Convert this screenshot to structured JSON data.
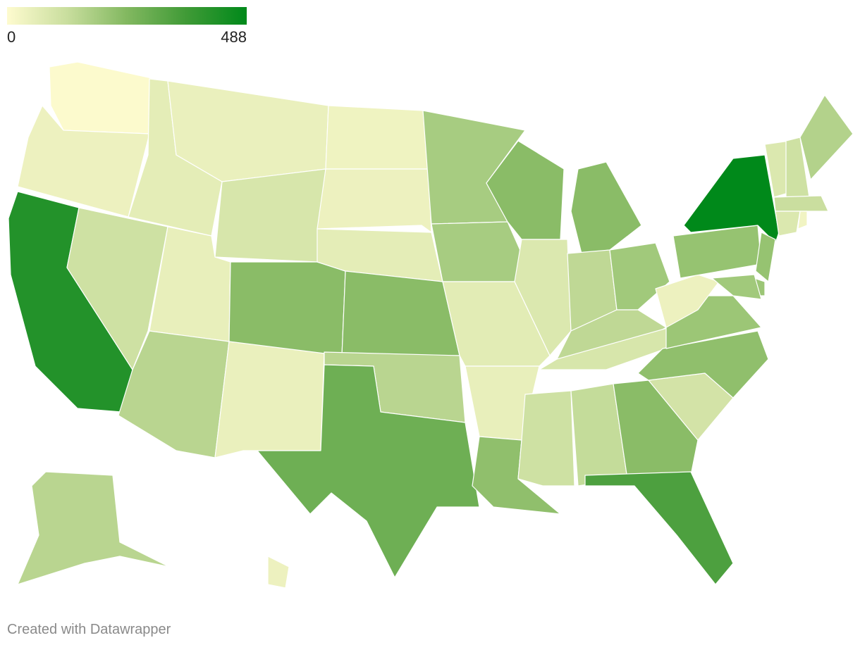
{
  "chart_data": {
    "type": "choropleth",
    "legend_ticks": [
      0,
      488
    ],
    "colors": [
      "#fefbcf",
      "#c9de9e",
      "#82b860",
      "#3f9a36",
      "#00891a"
    ],
    "values": [
      5,
      40,
      420,
      110,
      60,
      45,
      90,
      50,
      150,
      45,
      230,
      35,
      40,
      60,
      230,
      150,
      280,
      180,
      180,
      65,
      50,
      220,
      230,
      80,
      230,
      140,
      190,
      140,
      90,
      110,
      130,
      230,
      340,
      100,
      220,
      200,
      40,
      210,
      488,
      80,
      110,
      160,
      120,
      80,
      30,
      210,
      200,
      190,
      150,
      40
    ],
    "credit": "Created with Datawrapper"
  }
}
